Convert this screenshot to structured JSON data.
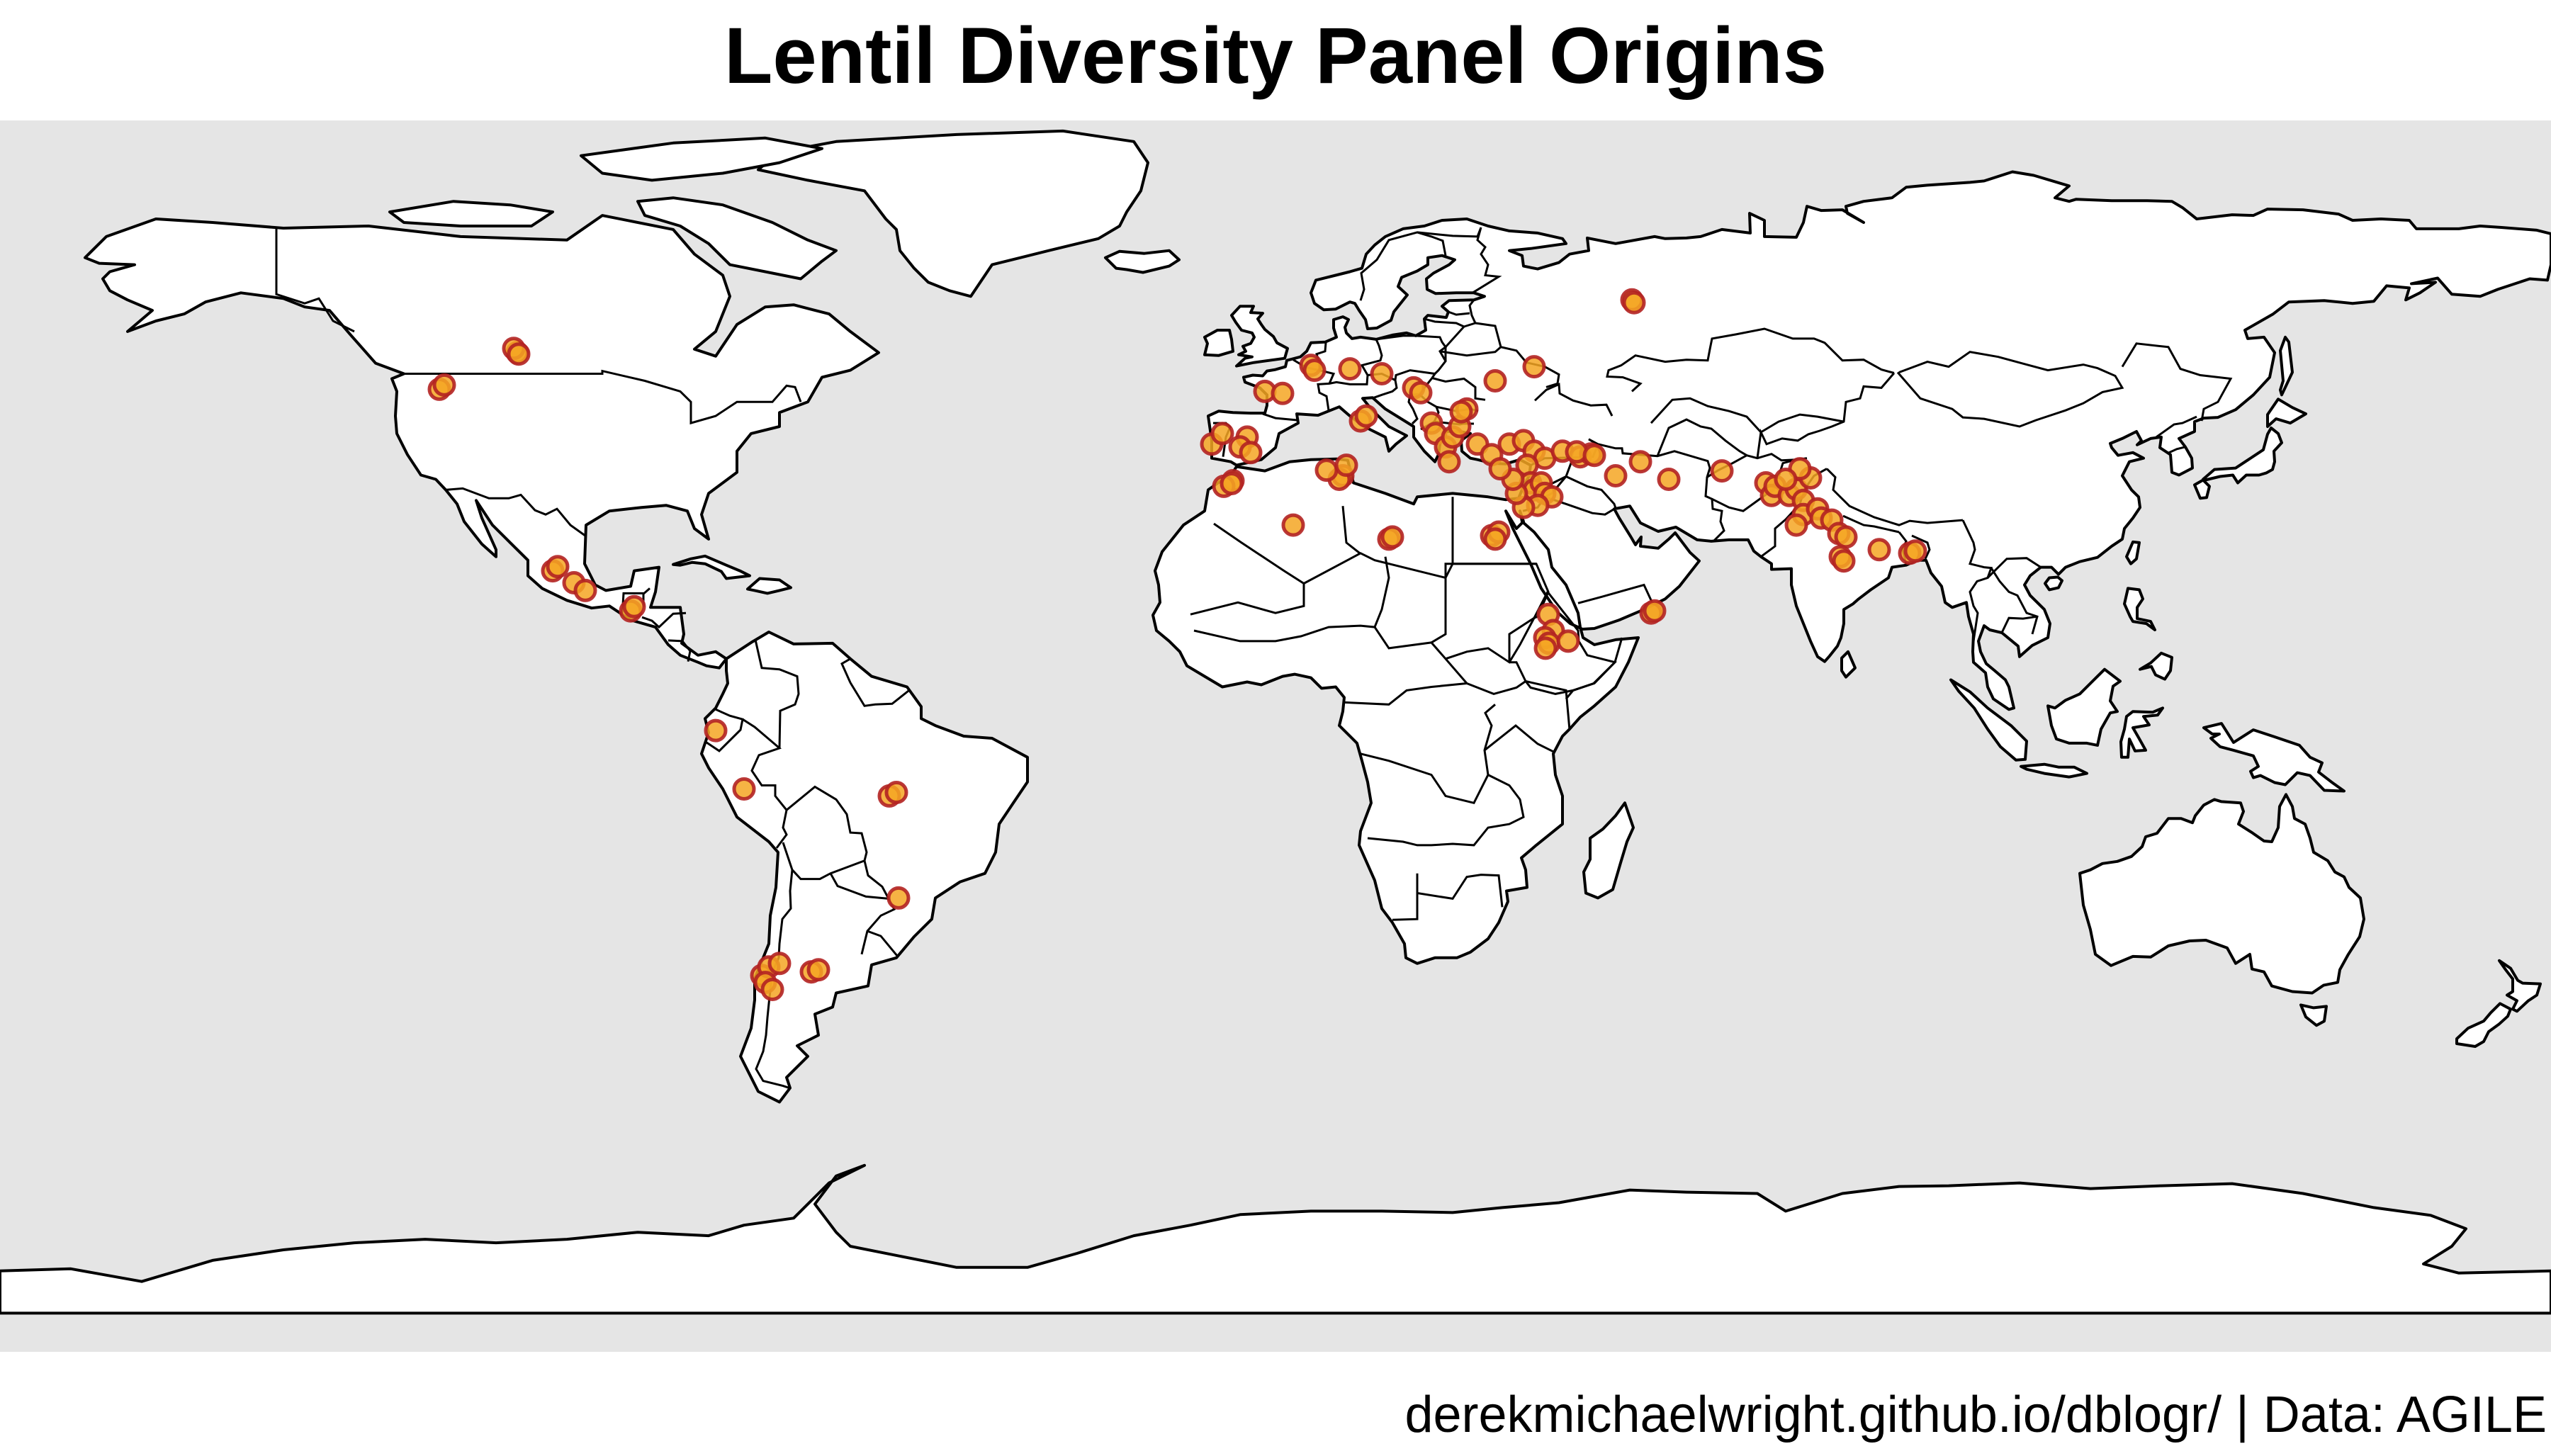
{
  "title": "Lentil Diversity Panel Origins",
  "caption": "derekmichaelwright.github.io/dblogr/ | Data: AGILE",
  "colors": {
    "ocean": "#e5e5e5",
    "land": "#ffffff",
    "border": "#000000",
    "point_fill": "#f5a623",
    "point_stroke": "#b22222"
  },
  "map_data": {
    "projection": "equirectangular",
    "lon_range": [
      -180,
      180
    ],
    "lat_range": [
      -90,
      85
    ],
    "point_style": "filled circle, orange fill, dark red outline, semi-transparent",
    "points": [
      {
        "lon": -107,
        "lat": 52
      },
      {
        "lon": -107.5,
        "lat": 52.6
      },
      {
        "lon": -106.8,
        "lat": 51.8
      },
      {
        "lon": -118,
        "lat": 46.8
      },
      {
        "lon": -117.3,
        "lat": 47.4
      },
      {
        "lon": -102,
        "lat": 21
      },
      {
        "lon": -101.3,
        "lat": 21.6
      },
      {
        "lon": -99,
        "lat": 19.3
      },
      {
        "lon": -97.4,
        "lat": 18.2
      },
      {
        "lon": -91,
        "lat": 15.3
      },
      {
        "lon": -90.5,
        "lat": 15.9
      },
      {
        "lon": -79,
        "lat": -1.7
      },
      {
        "lon": -75,
        "lat": -10
      },
      {
        "lon": -54.5,
        "lat": -11
      },
      {
        "lon": -53.5,
        "lat": -10.5
      },
      {
        "lon": -53.2,
        "lat": -25.5
      },
      {
        "lon": -72.5,
        "lat": -36.5
      },
      {
        "lon": -71.5,
        "lat": -35.3
      },
      {
        "lon": -72,
        "lat": -37.5
      },
      {
        "lon": -70,
        "lat": -34.8
      },
      {
        "lon": -65.5,
        "lat": -36
      },
      {
        "lon": -64.5,
        "lat": -35.7
      },
      {
        "lon": -71,
        "lat": -38.5
      },
      {
        "lon": -9,
        "lat": 39
      },
      {
        "lon": -7.5,
        "lat": 40.5
      },
      {
        "lon": -4,
        "lat": 40
      },
      {
        "lon": -5,
        "lat": 38.6
      },
      {
        "lon": -3.5,
        "lat": 37.8
      },
      {
        "lon": -1.5,
        "lat": 46.5
      },
      {
        "lon": 1,
        "lat": 46.2
      },
      {
        "lon": 5,
        "lat": 50.2
      },
      {
        "lon": 5.5,
        "lat": 49.5
      },
      {
        "lon": 10.5,
        "lat": 49.7
      },
      {
        "lon": 15,
        "lat": 49
      },
      {
        "lon": 19.5,
        "lat": 47
      },
      {
        "lon": 20.5,
        "lat": 46.3
      },
      {
        "lon": 31,
        "lat": 48
      },
      {
        "lon": 12,
        "lat": 42.3
      },
      {
        "lon": 12.8,
        "lat": 43
      },
      {
        "lon": 22,
        "lat": 42
      },
      {
        "lon": 22.6,
        "lat": 40.5
      },
      {
        "lon": 24,
        "lat": 38.6
      },
      {
        "lon": 24.5,
        "lat": 36.5
      },
      {
        "lon": 25,
        "lat": 40
      },
      {
        "lon": 26,
        "lat": 41.5
      },
      {
        "lon": 28.5,
        "lat": 39
      },
      {
        "lon": 30.5,
        "lat": 37.5
      },
      {
        "lon": 33,
        "lat": 39
      },
      {
        "lon": 35,
        "lat": 39.5
      },
      {
        "lon": 36.5,
        "lat": 38
      },
      {
        "lon": 38,
        "lat": 37
      },
      {
        "lon": 40.5,
        "lat": 38
      },
      {
        "lon": 43,
        "lat": 37.2
      },
      {
        "lon": 44.5,
        "lat": 37.6
      },
      {
        "lon": 35.5,
        "lat": 36
      },
      {
        "lon": 36,
        "lat": 33.5
      },
      {
        "lon": 36.5,
        "lat": 32.5
      },
      {
        "lon": 37.5,
        "lat": 33.5
      },
      {
        "lon": 38,
        "lat": 32
      },
      {
        "lon": 39,
        "lat": 31.5
      },
      {
        "lon": 37,
        "lat": 30.3
      },
      {
        "lon": 35,
        "lat": 30
      },
      {
        "lon": 34,
        "lat": 32
      },
      {
        "lon": 33.5,
        "lat": 34
      },
      {
        "lon": 31.7,
        "lat": 35.5
      },
      {
        "lon": 30.5,
        "lat": 26
      },
      {
        "lon": 31.5,
        "lat": 26.5
      },
      {
        "lon": 31,
        "lat": 25.5
      },
      {
        "lon": 16,
        "lat": 25.5
      },
      {
        "lon": 16.5,
        "lat": 25.8
      },
      {
        "lon": 2.5,
        "lat": 27.5
      },
      {
        "lon": 9.5,
        "lat": 34.5
      },
      {
        "lon": 9,
        "lat": 34
      },
      {
        "lon": 7.2,
        "lat": 35.3
      },
      {
        "lon": 10,
        "lat": 36
      },
      {
        "lon": -6,
        "lat": 33.8
      },
      {
        "lon": -7.3,
        "lat": 33
      },
      {
        "lon": -6.2,
        "lat": 33.4
      },
      {
        "lon": 51.5,
        "lat": 36.5
      },
      {
        "lon": 48,
        "lat": 34.5
      },
      {
        "lon": 63,
        "lat": 35.2
      },
      {
        "lon": 69.2,
        "lat": 33.5
      },
      {
        "lon": 70,
        "lat": 31.7
      },
      {
        "lon": 70.5,
        "lat": 33
      },
      {
        "lon": 72.5,
        "lat": 31.7
      },
      {
        "lon": 73.5,
        "lat": 32.6
      },
      {
        "lon": 74.5,
        "lat": 31
      },
      {
        "lon": 75.5,
        "lat": 34.2
      },
      {
        "lon": 74,
        "lat": 35.5
      },
      {
        "lon": 72,
        "lat": 34
      },
      {
        "lon": 74.5,
        "lat": 29
      },
      {
        "lon": 73.5,
        "lat": 27.5
      },
      {
        "lon": 76.5,
        "lat": 29.8
      },
      {
        "lon": 77,
        "lat": 28.5
      },
      {
        "lon": 78.5,
        "lat": 28.2
      },
      {
        "lon": 79.5,
        "lat": 26.3
      },
      {
        "lon": 80.5,
        "lat": 25.8
      },
      {
        "lon": 79.7,
        "lat": 23
      },
      {
        "lon": 80.2,
        "lat": 22.4
      },
      {
        "lon": 85.2,
        "lat": 24
      },
      {
        "lon": 89.5,
        "lat": 23.5
      },
      {
        "lon": 90.3,
        "lat": 23.8
      },
      {
        "lon": 53,
        "lat": 15
      },
      {
        "lon": 53.5,
        "lat": 15.3
      },
      {
        "lon": 38.5,
        "lat": 14.8
      },
      {
        "lon": 39.2,
        "lat": 12.5
      },
      {
        "lon": 38,
        "lat": 11.5
      },
      {
        "lon": 38.6,
        "lat": 10.7
      },
      {
        "lon": 38.1,
        "lat": 10
      },
      {
        "lon": 41.3,
        "lat": 11
      },
      {
        "lon": 50.3,
        "lat": 59.5
      },
      {
        "lon": 50.6,
        "lat": 59.1
      },
      {
        "lon": 36.5,
        "lat": 50
      },
      {
        "lon": 27,
        "lat": 44
      },
      {
        "lon": 26.2,
        "lat": 43.6
      },
      {
        "lon": 42.5,
        "lat": 37.9
      },
      {
        "lon": 45,
        "lat": 37.4
      },
      {
        "lon": 55.5,
        "lat": 34
      }
    ]
  }
}
